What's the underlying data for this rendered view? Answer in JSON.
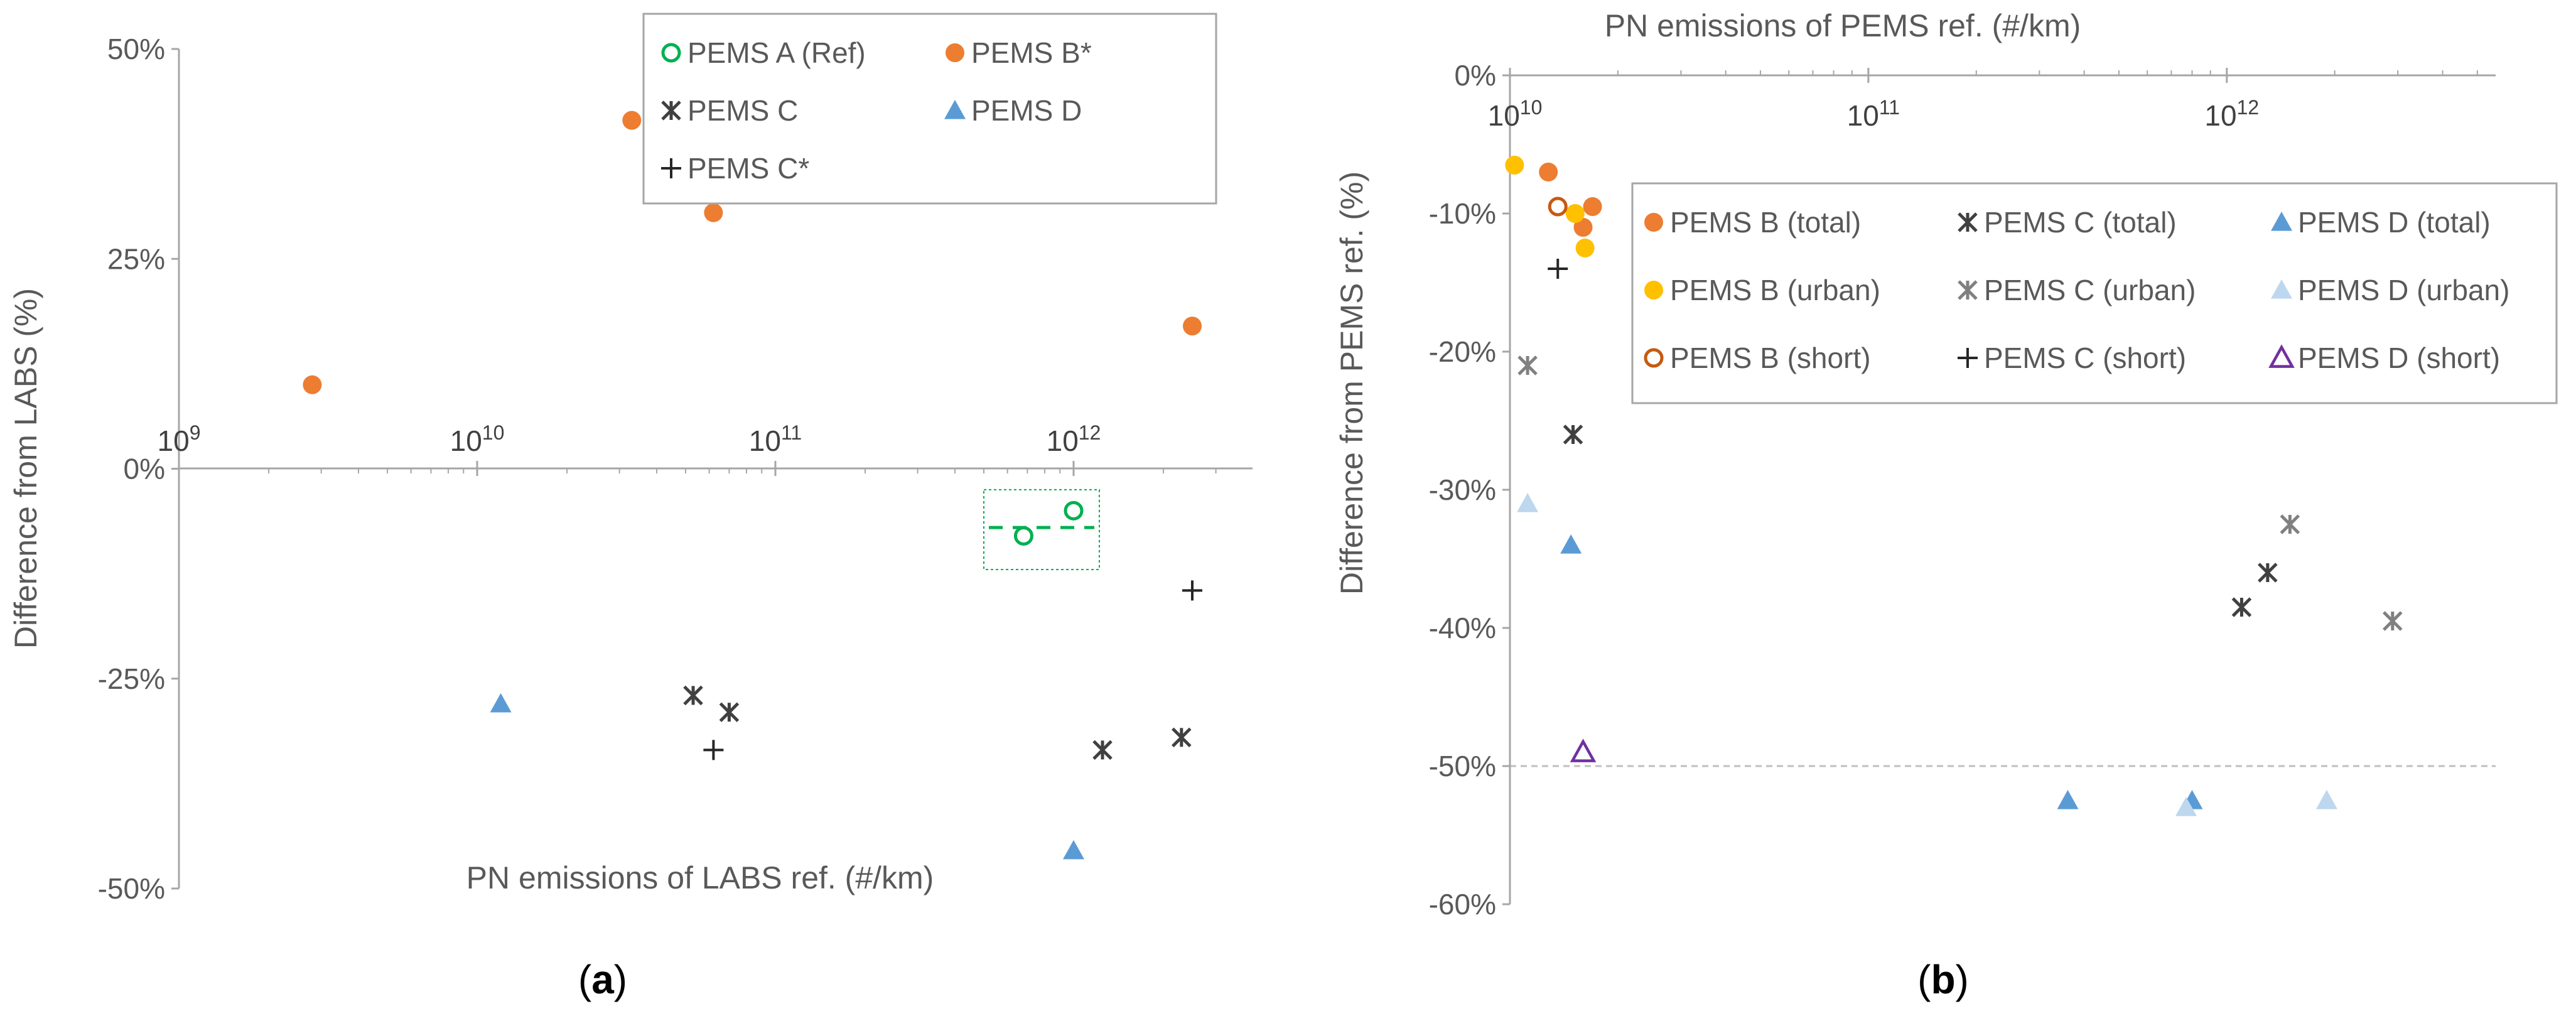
{
  "colors": {
    "ref": "#00B050",
    "b_total": "#ED7D31",
    "b_urban": "#FFC000",
    "b_short": "#C55A11",
    "c_total": "#404040",
    "c_urban": "#808080",
    "c_short": "#262626",
    "d_total": "#5B9BD5",
    "d_urban": "#BDD7EE",
    "d_short": "#7030A0",
    "axis": "#A6A6A6",
    "label": "#595959"
  },
  "chart_data": [
    {
      "panel_label": "(a)",
      "type": "scatter",
      "xscale": "log",
      "xlim_log10": [
        9,
        12.6
      ],
      "ylim": [
        -50,
        50
      ],
      "xlabel": "PN emissions of LABS ref. (#/km)",
      "ylabel": "Difference from LABS (%)",
      "x_ticks": [
        {
          "exp": 9,
          "base": "10",
          "sup": "9"
        },
        {
          "exp": 10,
          "base": "10",
          "sup": "10"
        },
        {
          "exp": 11,
          "base": "10",
          "sup": "11"
        },
        {
          "exp": 12,
          "base": "10",
          "sup": "12"
        }
      ],
      "y_ticks": [
        {
          "v": 50,
          "label": "50%"
        },
        {
          "v": 25,
          "label": "25%"
        },
        {
          "v": 0,
          "label": "0%"
        },
        {
          "v": -25,
          "label": "-25%"
        },
        {
          "v": -50,
          "label": "-50%"
        }
      ],
      "legend": [
        {
          "label": "PEMS A (Ref)",
          "marker": "circle-open",
          "color": "#00B050"
        },
        {
          "label": "PEMS B*",
          "marker": "circle",
          "color": "#ED7D31"
        },
        {
          "label": "PEMS C",
          "marker": "star",
          "color": "#404040"
        },
        {
          "label": "PEMS D",
          "marker": "triangle",
          "color": "#5B9BD5"
        },
        {
          "label": "PEMS C*",
          "marker": "plus",
          "color": "#262626"
        }
      ],
      "series": [
        {
          "name": "PEMS A (Ref)",
          "marker": "circle-open",
          "color": "#00B050",
          "points": [
            [
              680000000000.0,
              -8
            ],
            [
              1000000000000.0,
              -5
            ]
          ]
        },
        {
          "name": "PEMS B*",
          "marker": "circle",
          "color": "#ED7D31",
          "points": [
            [
              2800000000.0,
              10
            ],
            [
              33000000000.0,
              41.5
            ],
            [
              62000000000.0,
              30.5
            ],
            [
              2500000000000.0,
              17
            ]
          ]
        },
        {
          "name": "PEMS C",
          "marker": "star",
          "color": "#404040",
          "points": [
            [
              53000000000.0,
              -27
            ],
            [
              70000000000.0,
              -29
            ],
            [
              1250000000000.0,
              -33.5
            ],
            [
              2300000000000.0,
              -32
            ]
          ]
        },
        {
          "name": "PEMS D",
          "marker": "triangle",
          "color": "#5B9BD5",
          "points": [
            [
              12000000000.0,
              -28
            ],
            [
              1000000000000.0,
              -45.5
            ]
          ]
        },
        {
          "name": "PEMS C*",
          "marker": "plus",
          "color": "#262626",
          "points": [
            [
              62000000000.0,
              -33.5
            ],
            [
              2500000000000.0,
              -14.5
            ]
          ]
        }
      ],
      "annotation": {
        "type": "dashed-box",
        "x_range": [
          500000000000.0,
          1220000000000.0
        ],
        "y_range": [
          -12,
          -2.5
        ],
        "dash_y": -7
      }
    },
    {
      "panel_label": "(b)",
      "type": "scatter",
      "xscale": "log",
      "xlim_log10": [
        10,
        12.75
      ],
      "ylim": [
        -60,
        0
      ],
      "x_axis_position": "top",
      "xlabel": "PN emissions of PEMS ref. (#/km)",
      "ylabel": "Difference from PEMS ref. (%)",
      "x_ticks": [
        {
          "exp": 10,
          "base": "10",
          "sup": "10"
        },
        {
          "exp": 11,
          "base": "10",
          "sup": "11"
        },
        {
          "exp": 12,
          "base": "10",
          "sup": "12"
        }
      ],
      "y_ticks": [
        {
          "v": 0,
          "label": "0%"
        },
        {
          "v": -10,
          "label": "-10%"
        },
        {
          "v": -20,
          "label": "-20%"
        },
        {
          "v": -30,
          "label": "-30%"
        },
        {
          "v": -40,
          "label": "-40%"
        },
        {
          "v": -50,
          "label": "-50%"
        },
        {
          "v": -60,
          "label": "-60%"
        }
      ],
      "reference_line": -50,
      "legend": [
        {
          "label": "PEMS B (total)",
          "marker": "circle",
          "color": "#ED7D31"
        },
        {
          "label": "PEMS C (total)",
          "marker": "star",
          "color": "#404040"
        },
        {
          "label": "PEMS D (total)",
          "marker": "triangle",
          "color": "#5B9BD5"
        },
        {
          "label": "PEMS B (urban)",
          "marker": "circle",
          "color": "#FFC000"
        },
        {
          "label": "PEMS C (urban)",
          "marker": "star",
          "color": "#808080"
        },
        {
          "label": "PEMS D (urban)",
          "marker": "triangle",
          "color": "#BDD7EE"
        },
        {
          "label": "PEMS B (short)",
          "marker": "circle-open",
          "color": "#C55A11"
        },
        {
          "label": "PEMS C (short)",
          "marker": "plus",
          "color": "#262626"
        },
        {
          "label": "PEMS D (short)",
          "marker": "triangle-open",
          "color": "#7030A0"
        }
      ],
      "series": [
        {
          "name": "PEMS B (total)",
          "marker": "circle",
          "color": "#ED7D31",
          "points": [
            [
              12800000000.0,
              -7
            ],
            [
              16000000000.0,
              -11
            ],
            [
              17000000000.0,
              -9.5
            ]
          ]
        },
        {
          "name": "PEMS B (urban)",
          "marker": "circle",
          "color": "#FFC000",
          "points": [
            [
              10300000000.0,
              -6.5
            ],
            [
              15200000000.0,
              -10
            ],
            [
              16200000000.0,
              -12.5
            ]
          ]
        },
        {
          "name": "PEMS B (short)",
          "marker": "circle-open",
          "color": "#C55A11",
          "points": [
            [
              13600000000.0,
              -9.5
            ]
          ]
        },
        {
          "name": "PEMS C (total)",
          "marker": "star",
          "color": "#404040",
          "points": [
            [
              15000000000.0,
              -26
            ],
            [
              1100000000000.0,
              -38.5
            ],
            [
              1300000000000.0,
              -36
            ]
          ]
        },
        {
          "name": "PEMS C (urban)",
          "marker": "star",
          "color": "#808080",
          "points": [
            [
              11200000000.0,
              -21
            ],
            [
              1500000000000.0,
              -32.5
            ],
            [
              2900000000000.0,
              -39.5
            ]
          ]
        },
        {
          "name": "PEMS C (short)",
          "marker": "plus",
          "color": "#262626",
          "points": [
            [
              13600000000.0,
              -14
            ]
          ]
        },
        {
          "name": "PEMS D (total)",
          "marker": "triangle",
          "color": "#5B9BD5",
          "points": [
            [
              14800000000.0,
              -34
            ],
            [
              360000000000.0,
              -52.5
            ],
            [
              800000000000.0,
              -52.5
            ]
          ]
        },
        {
          "name": "PEMS D (urban)",
          "marker": "triangle",
          "color": "#BDD7EE",
          "points": [
            [
              11200000000.0,
              -31
            ],
            [
              770000000000.0,
              -53
            ],
            [
              1900000000000.0,
              -52.5
            ]
          ]
        },
        {
          "name": "PEMS D (short)",
          "marker": "triangle-open",
          "color": "#7030A0",
          "points": [
            [
              16000000000.0,
              -49
            ]
          ]
        }
      ]
    }
  ]
}
